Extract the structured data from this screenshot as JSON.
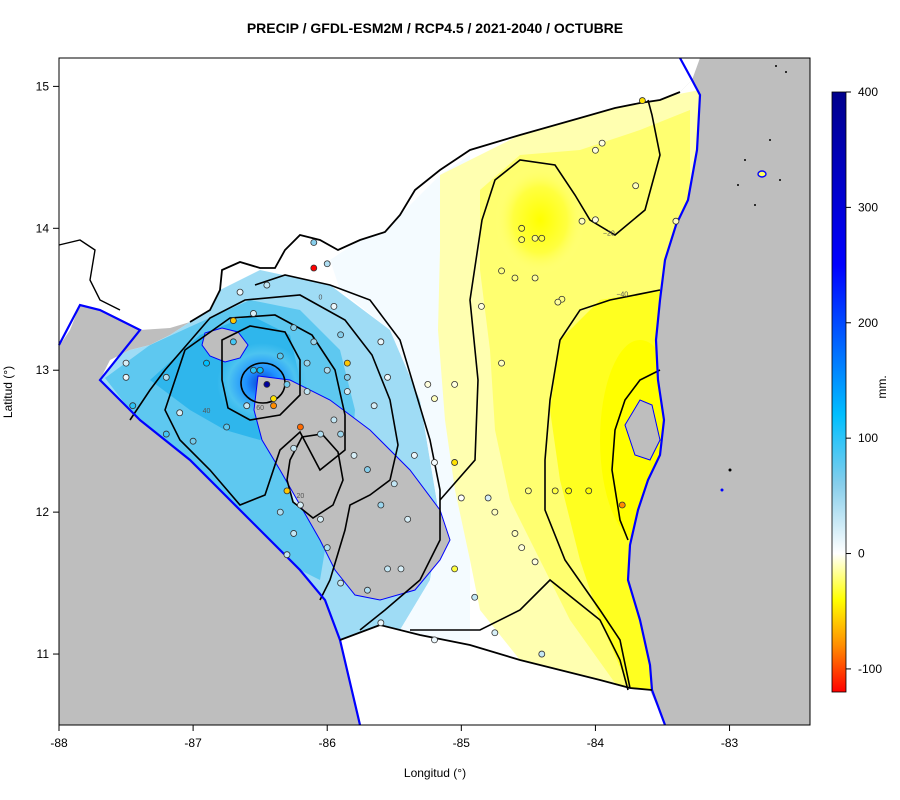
{
  "title": "PRECIP / GFDL-ESM2M / RCP4.5 / 2021-2040 / OCTUBRE",
  "xlabel": "Longitud (°)",
  "ylabel": "Latitud (°)",
  "unit": "mm.",
  "chart_data": {
    "type": "heatmap",
    "xlim": [
      -88,
      -82.4
    ],
    "ylim": [
      10.5,
      15.2
    ],
    "x_ticks": [
      -88,
      -87,
      -86,
      -85,
      -84,
      -83
    ],
    "y_ticks": [
      11,
      12,
      13,
      14,
      15
    ],
    "colorbar": {
      "min": -120,
      "max": 400,
      "ticks": [
        -100,
        0,
        100,
        200,
        300,
        400
      ],
      "stops": [
        {
          "value": -120,
          "color": "#ff0000"
        },
        {
          "value": -80,
          "color": "#ff8c00"
        },
        {
          "value": -40,
          "color": "#ffff00"
        },
        {
          "value": 0,
          "color": "#ffffff"
        },
        {
          "value": 60,
          "color": "#87ceeb"
        },
        {
          "value": 120,
          "color": "#00bfff"
        },
        {
          "value": 250,
          "color": "#0000ff"
        },
        {
          "value": 400,
          "color": "#00008b"
        }
      ]
    },
    "contour_labels": [
      {
        "lon": -86.5,
        "lat": 12.98,
        "label": "80"
      },
      {
        "lon": -86.5,
        "lat": 12.72,
        "label": "60"
      },
      {
        "lon": -86.9,
        "lat": 12.7,
        "label": "40"
      },
      {
        "lon": -86.2,
        "lat": 12.1,
        "label": "20"
      },
      {
        "lon": -86.05,
        "lat": 13.5,
        "label": "0"
      },
      {
        "lon": -83.9,
        "lat": 13.95,
        "label": "−20"
      },
      {
        "lon": -83.8,
        "lat": 13.52,
        "label": "−40"
      }
    ],
    "stations": [
      {
        "lon": -86.45,
        "lat": 12.9,
        "value": 380
      },
      {
        "lon": -86.1,
        "lat": 13.72,
        "value": -120
      },
      {
        "lon": -86.5,
        "lat": 13.0,
        "value": 120
      },
      {
        "lon": -86.55,
        "lat": 13.0,
        "value": 100
      },
      {
        "lon": -86.7,
        "lat": 13.2,
        "value": 90
      },
      {
        "lon": -86.9,
        "lat": 13.05,
        "value": 120
      },
      {
        "lon": -86.35,
        "lat": 13.1,
        "value": 80
      },
      {
        "lon": -86.3,
        "lat": 12.9,
        "value": 70
      },
      {
        "lon": -86.25,
        "lat": 13.3,
        "value": 60
      },
      {
        "lon": -86.1,
        "lat": 13.2,
        "value": 50
      },
      {
        "lon": -86.0,
        "lat": 13.0,
        "value": 40
      },
      {
        "lon": -85.85,
        "lat": 12.95,
        "value": 60
      },
      {
        "lon": -86.6,
        "lat": 12.75,
        "value": 30
      },
      {
        "lon": -86.75,
        "lat": 12.6,
        "value": 80
      },
      {
        "lon": -87.0,
        "lat": 12.5,
        "value": 70
      },
      {
        "lon": -87.2,
        "lat": 12.55,
        "value": 90
      },
      {
        "lon": -87.1,
        "lat": 12.7,
        "value": 20
      },
      {
        "lon": -87.2,
        "lat": 12.95,
        "value": 40
      },
      {
        "lon": -87.5,
        "lat": 12.95,
        "value": 10
      },
      {
        "lon": -87.5,
        "lat": 13.05,
        "value": 20
      },
      {
        "lon": -87.45,
        "lat": 12.75,
        "value": 100
      },
      {
        "lon": -86.4,
        "lat": 12.75,
        "value": -80
      },
      {
        "lon": -86.2,
        "lat": 12.6,
        "value": -90
      },
      {
        "lon": -86.3,
        "lat": 12.15,
        "value": -60
      },
      {
        "lon": -86.35,
        "lat": 12.0,
        "value": 40
      },
      {
        "lon": -86.25,
        "lat": 11.85,
        "value": 30
      },
      {
        "lon": -86.0,
        "lat": 11.75,
        "value": 40
      },
      {
        "lon": -85.9,
        "lat": 11.5,
        "value": 30
      },
      {
        "lon": -85.7,
        "lat": 11.45,
        "value": 40
      },
      {
        "lon": -85.55,
        "lat": 11.6,
        "value": 30
      },
      {
        "lon": -85.45,
        "lat": 11.6,
        "value": 20
      },
      {
        "lon": -85.4,
        "lat": 11.95,
        "value": 20
      },
      {
        "lon": -85.5,
        "lat": 12.2,
        "value": 30
      },
      {
        "lon": -85.7,
        "lat": 12.3,
        "value": 60
      },
      {
        "lon": -85.9,
        "lat": 12.55,
        "value": 50
      },
      {
        "lon": -86.05,
        "lat": 12.55,
        "value": 40
      },
      {
        "lon": -85.65,
        "lat": 12.75,
        "value": 20
      },
      {
        "lon": -85.55,
        "lat": 12.95,
        "value": 10
      },
      {
        "lon": -85.6,
        "lat": 13.2,
        "value": 10
      },
      {
        "lon": -85.95,
        "lat": 13.45,
        "value": 10
      },
      {
        "lon": -86.45,
        "lat": 13.6,
        "value": 30
      },
      {
        "lon": -86.55,
        "lat": 13.4,
        "value": 20
      },
      {
        "lon": -86.7,
        "lat": 13.35,
        "value": -60
      },
      {
        "lon": -86.65,
        "lat": 13.55,
        "value": 10
      },
      {
        "lon": -86.0,
        "lat": 13.75,
        "value": 40
      },
      {
        "lon": -86.1,
        "lat": 13.9,
        "value": 60
      },
      {
        "lon": -85.85,
        "lat": 13.05,
        "value": -60
      },
      {
        "lon": -86.4,
        "lat": 12.8,
        "value": -50
      },
      {
        "lon": -86.25,
        "lat": 12.45,
        "value": 30
      },
      {
        "lon": -85.35,
        "lat": 12.4,
        "value": 10
      },
      {
        "lon": -85.2,
        "lat": 12.35,
        "value": 5
      },
      {
        "lon": -85.05,
        "lat": 12.35,
        "value": -50
      },
      {
        "lon": -85.05,
        "lat": 12.9,
        "value": -5
      },
      {
        "lon": -85.2,
        "lat": 12.8,
        "value": -10
      },
      {
        "lon": -85.0,
        "lat": 12.1,
        "value": 0
      },
      {
        "lon": -84.8,
        "lat": 12.1,
        "value": 20
      },
      {
        "lon": -84.75,
        "lat": 12.0,
        "value": -10
      },
      {
        "lon": -84.6,
        "lat": 11.85,
        "value": -10
      },
      {
        "lon": -84.55,
        "lat": 11.75,
        "value": -5
      },
      {
        "lon": -84.45,
        "lat": 11.65,
        "value": -5
      },
      {
        "lon": -85.05,
        "lat": 11.6,
        "value": -30
      },
      {
        "lon": -84.9,
        "lat": 11.4,
        "value": 30
      },
      {
        "lon": -84.75,
        "lat": 11.15,
        "value": 20
      },
      {
        "lon": -84.4,
        "lat": 11.0,
        "value": 30
      },
      {
        "lon": -85.2,
        "lat": 11.1,
        "value": 10
      },
      {
        "lon": -85.6,
        "lat": 11.22,
        "value": 10
      },
      {
        "lon": -84.5,
        "lat": 12.15,
        "value": -20
      },
      {
        "lon": -84.3,
        "lat": 12.15,
        "value": -30
      },
      {
        "lon": -84.2,
        "lat": 12.15,
        "value": -40
      },
      {
        "lon": -84.05,
        "lat": 12.15,
        "value": -40
      },
      {
        "lon": -83.8,
        "lat": 12.05,
        "value": -80
      },
      {
        "lon": -84.85,
        "lat": 13.45,
        "value": -5
      },
      {
        "lon": -84.7,
        "lat": 13.05,
        "value": -10
      },
      {
        "lon": -84.7,
        "lat": 13.7,
        "value": -20
      },
      {
        "lon": -84.6,
        "lat": 13.65,
        "value": -20
      },
      {
        "lon": -84.45,
        "lat": 13.65,
        "value": -15
      },
      {
        "lon": -84.55,
        "lat": 14.0,
        "value": -30
      },
      {
        "lon": -84.55,
        "lat": 13.92,
        "value": -25
      },
      {
        "lon": -84.4,
        "lat": 13.93,
        "value": -30
      },
      {
        "lon": -84.45,
        "lat": 13.93,
        "value": -20
      },
      {
        "lon": -84.25,
        "lat": 13.5,
        "value": -20
      },
      {
        "lon": -84.28,
        "lat": 13.48,
        "value": -15
      },
      {
        "lon": -84.1,
        "lat": 14.05,
        "value": -10
      },
      {
        "lon": -84.0,
        "lat": 14.06,
        "value": -5
      },
      {
        "lon": -84.0,
        "lat": 14.55,
        "value": -5
      },
      {
        "lon": -83.95,
        "lat": 14.6,
        "value": -5
      },
      {
        "lon": -83.7,
        "lat": 14.3,
        "value": -10
      },
      {
        "lon": -83.65,
        "lat": 14.9,
        "value": -50
      },
      {
        "lon": -83.4,
        "lat": 14.05,
        "value": -10
      },
      {
        "lon": -85.25,
        "lat": 12.9,
        "value": -5
      },
      {
        "lon": -86.2,
        "lat": 12.05,
        "value": 20
      },
      {
        "lon": -86.3,
        "lat": 11.7,
        "value": 30
      },
      {
        "lon": -86.05,
        "lat": 11.95,
        "value": 20
      },
      {
        "lon": -85.85,
        "lat": 12.85,
        "value": 20
      },
      {
        "lon": -85.95,
        "lat": 12.65,
        "value": 30
      },
      {
        "lon": -85.8,
        "lat": 12.4,
        "value": 20
      },
      {
        "lon": -85.6,
        "lat": 12.05,
        "value": 50
      },
      {
        "lon": -85.9,
        "lat": 13.25,
        "value": 60
      },
      {
        "lon": -86.15,
        "lat": 13.05,
        "value": 50
      },
      {
        "lon": -86.15,
        "lat": 12.85,
        "value": 30
      }
    ]
  }
}
